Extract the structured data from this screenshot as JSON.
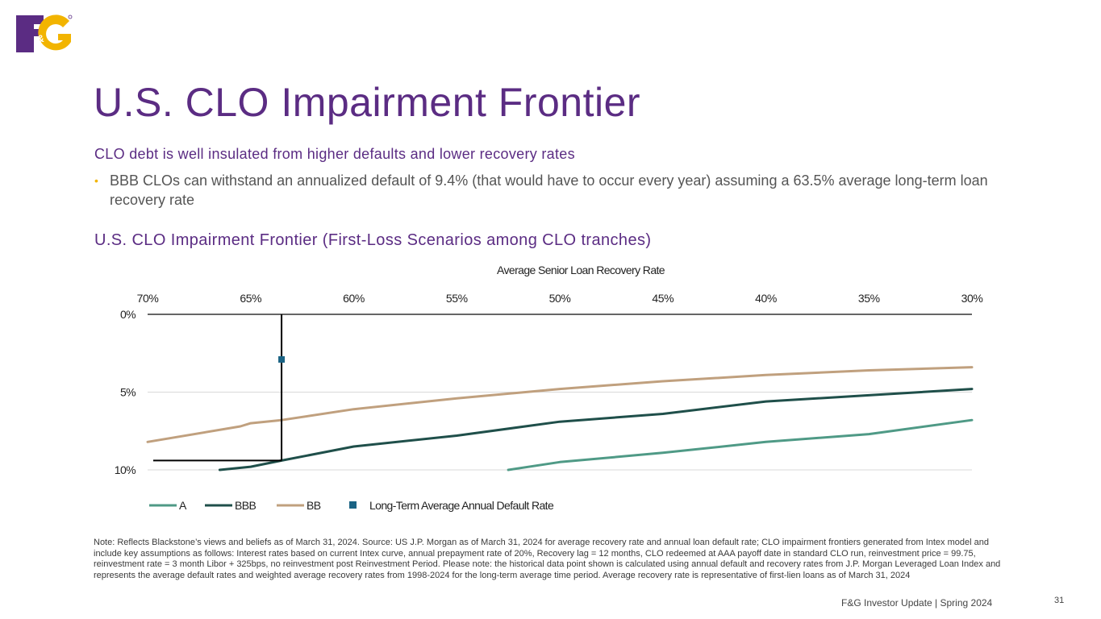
{
  "header": {
    "logo_text": "F&G",
    "title": "U.S. CLO Impairment Frontier",
    "subtitle": "CLO debt is well insulated from higher defaults and lower recovery rates",
    "bullet_marker": "•",
    "bullet": "BBB CLOs can withstand an annualized default of 9.4% (that would have to occur every year) assuming a 63.5% average long-term loan recovery rate",
    "chart_heading": "U.S. CLO Impairment Frontier (First-Loss Scenarios among CLO tranches)"
  },
  "colors": {
    "purple": "#5b2c83",
    "gold": "#f2b400",
    "series_A": "#4f9a86",
    "series_BBB": "#1f4f4a",
    "series_BB": "#c0a07e",
    "marker": "#1a6384",
    "reference": "#000000"
  },
  "chart_data": {
    "type": "line",
    "title": "Average Senior Loan Recovery Rate",
    "xlabel": "Average Senior Loan Recovery Rate",
    "ylabel": "",
    "x_tick_labels": [
      "70%",
      "65%",
      "60%",
      "55%",
      "50%",
      "45%",
      "40%",
      "35%",
      "30%"
    ],
    "x_ticks": [
      70,
      65,
      60,
      55,
      50,
      45,
      40,
      35,
      30
    ],
    "xlim": [
      70,
      30
    ],
    "y_tick_labels": [
      "0%",
      "5%",
      "10%"
    ],
    "y_ticks": [
      0,
      5,
      10
    ],
    "ylim": [
      0,
      10
    ],
    "y_inverted": true,
    "series": [
      {
        "name": "A",
        "x": [
          52.5,
          50,
          45,
          40,
          35,
          30
        ],
        "values": [
          10.0,
          9.5,
          8.9,
          8.2,
          7.7,
          6.8
        ]
      },
      {
        "name": "BBB",
        "x": [
          66.5,
          65,
          63.5,
          60,
          55,
          50,
          45,
          40,
          35,
          30
        ],
        "values": [
          10.0,
          9.8,
          9.4,
          8.5,
          7.8,
          6.9,
          6.4,
          5.6,
          5.2,
          4.8
        ]
      },
      {
        "name": "BB",
        "x": [
          70,
          65.5,
          65,
          63.5,
          60,
          55,
          50,
          45,
          40,
          35,
          30
        ],
        "values": [
          8.2,
          7.2,
          7.0,
          6.8,
          6.1,
          5.4,
          4.8,
          4.3,
          3.9,
          3.6,
          3.4
        ]
      }
    ],
    "markers": [
      {
        "name": "Long-Term Average Annual Default Rate",
        "x": 63.5,
        "y": 2.9
      }
    ],
    "reference_lines": {
      "vertical_x": 63.5,
      "horizontal_y": 9.4
    },
    "legend": [
      "A",
      "BBB",
      "BB",
      "Long-Term Average Annual Default Rate"
    ],
    "legend_position": "bottom-left"
  },
  "note": "Note: Reflects Blackstone’s views and beliefs as of March 31, 2024. Source: US J.P. Morgan as of March 31, 2024 for average recovery rate and annual loan default rate; CLO impairment frontiers generated from Intex model and include key assumptions as follows: Interest rates based on current Intex curve, annual prepayment rate of 20%, Recovery lag = 12 months, CLO redeemed at AAA payoff date in standard CLO run, reinvestment price = 99.75, reinvestment rate = 3 month Libor + 325bps, no reinvestment post Reinvestment Period. Please note: the historical data point shown is calculated using annual default and recovery rates from J.P. Morgan Leveraged Loan Index and represents the average default rates and weighted average recovery rates from 1998-2024 for the long-term average time period. Average recovery rate is representative of first-lien loans as of March 31, 2024",
  "footer": {
    "text": "F&G Investor Update | Spring 2024",
    "page": "31"
  }
}
